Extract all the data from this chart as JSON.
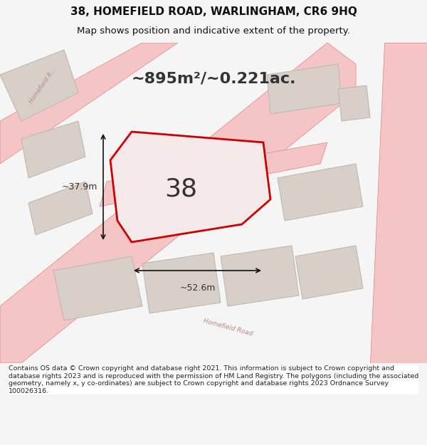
{
  "title_line1": "38, HOMEFIELD ROAD, WARLINGHAM, CR6 9HQ",
  "title_line2": "Map shows position and indicative extent of the property.",
  "area_text": "~895m²/~0.221ac.",
  "property_number": "38",
  "dim_width": "~52.6m",
  "dim_height": "~37.9m",
  "footer_text": "Contains OS data © Crown copyright and database right 2021. This information is subject to Crown copyright and database rights 2023 and is reproduced with the permission of HM Land Registry. The polygons (including the associated geometry, namely x, y co-ordinates) are subject to Crown copyright and database rights 2023 Ordnance Survey 100026316.",
  "bg_color": "#f5f5f5",
  "map_bg": "#f0ede8",
  "road_color": "#f5c5c5",
  "road_line_color": "#e08080",
  "building_fill": "#d8d0c8",
  "building_edge": "#c0b8b0",
  "property_fill": "#f5e8e8",
  "property_edge": "#cc0000",
  "text_color": "#222222",
  "dim_line_color": "#111111",
  "title_color": "#111111",
  "footer_bg": "#ffffff"
}
